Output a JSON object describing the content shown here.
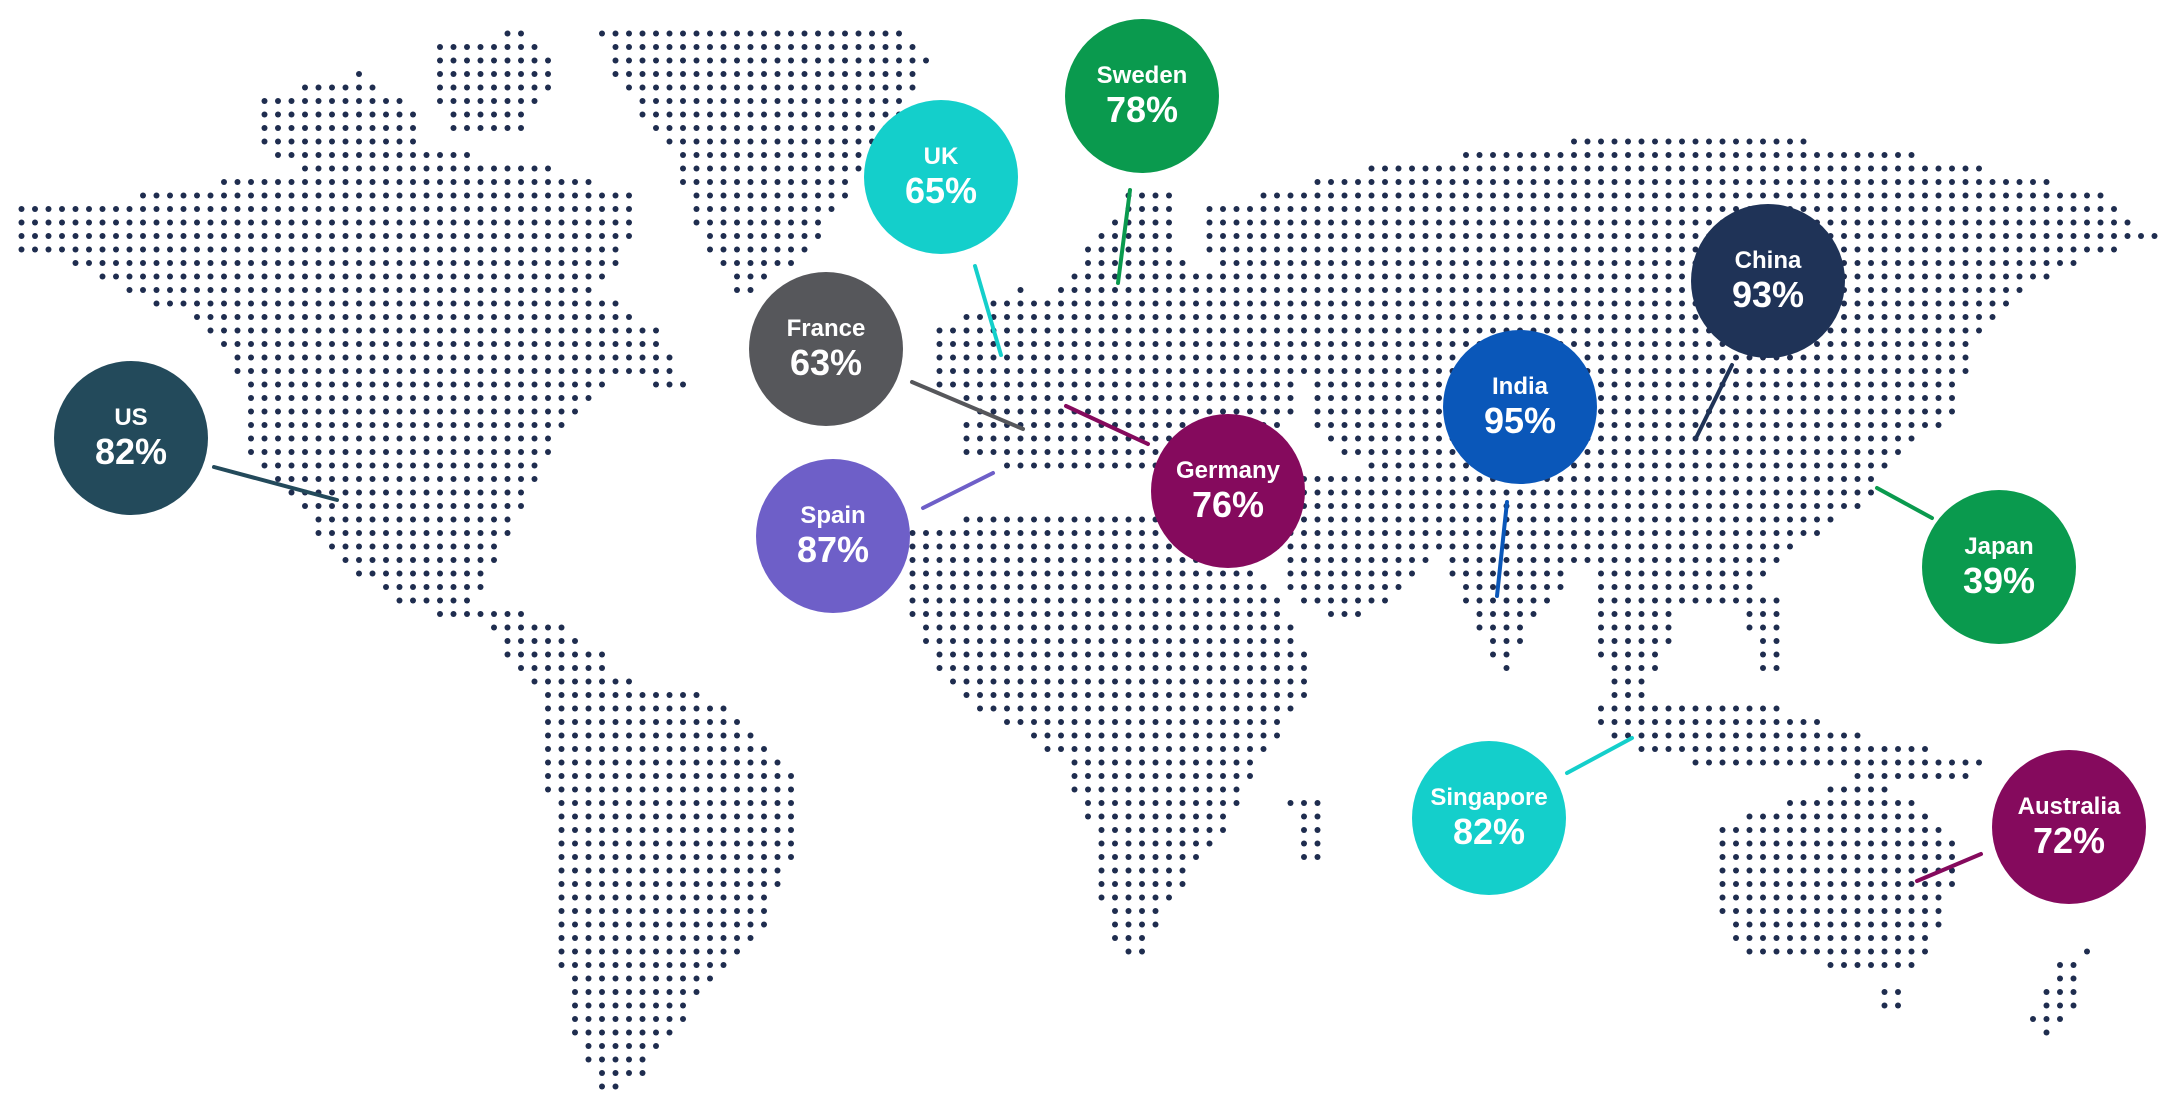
{
  "map": {
    "dot_color": "#1f2d4f",
    "markers": [
      {
        "id": "us",
        "country": "US",
        "value": "82%",
        "color": "#234a5b"
      },
      {
        "id": "uk",
        "country": "UK",
        "value": "65%",
        "color": "#14cfcb"
      },
      {
        "id": "sweden",
        "country": "Sweden",
        "value": "78%",
        "color": "#0a9a4e"
      },
      {
        "id": "france",
        "country": "France",
        "value": "63%",
        "color": "#56575b"
      },
      {
        "id": "spain",
        "country": "Spain",
        "value": "87%",
        "color": "#6e5fc8"
      },
      {
        "id": "germany",
        "country": "Germany",
        "value": "76%",
        "color": "#850a5d"
      },
      {
        "id": "india",
        "country": "India",
        "value": "95%",
        "color": "#0a57b9"
      },
      {
        "id": "china",
        "country": "China",
        "value": "93%",
        "color": "#1f3357"
      },
      {
        "id": "japan",
        "country": "Japan",
        "value": "39%",
        "color": "#0a9a4e"
      },
      {
        "id": "singapore",
        "country": "Singapore",
        "value": "82%",
        "color": "#14cfcb"
      },
      {
        "id": "australia",
        "country": "Australia",
        "value": "72%",
        "color": "#850a5d"
      }
    ]
  }
}
